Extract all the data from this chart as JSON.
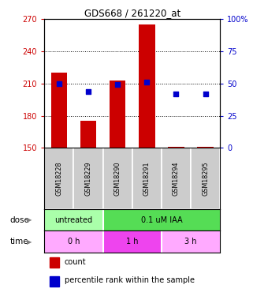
{
  "title": "GDS668 / 261220_at",
  "samples": [
    "GSM18228",
    "GSM18229",
    "GSM18290",
    "GSM18291",
    "GSM18294",
    "GSM18295"
  ],
  "bar_values": [
    220,
    175,
    213,
    265,
    151,
    151
  ],
  "bar_bottom": 150,
  "blue_values": [
    50,
    44,
    49,
    51,
    42,
    42
  ],
  "ylim_left": [
    150,
    270
  ],
  "ylim_right": [
    0,
    100
  ],
  "yticks_left": [
    150,
    180,
    210,
    240,
    270
  ],
  "yticks_right": [
    0,
    25,
    50,
    75,
    100
  ],
  "bar_color": "#cc0000",
  "blue_color": "#0000cc",
  "dose_labels": [
    "untreated",
    "0.1 uM IAA"
  ],
  "dose_colors": [
    "#aaffaa",
    "#55dd55"
  ],
  "time_labels": [
    "0 h",
    "1 h",
    "3 h"
  ],
  "time_colors": [
    "#ffaaff",
    "#ee44ee",
    "#ffaaff"
  ],
  "legend_count_color": "#cc0000",
  "legend_pct_color": "#0000cc",
  "grid_color": "black",
  "background_color": "white",
  "left_axis_color": "#cc0000",
  "right_axis_color": "#0000cc",
  "sample_bg_color": "#cccccc",
  "grid_lines_at": [
    180,
    210,
    240
  ]
}
